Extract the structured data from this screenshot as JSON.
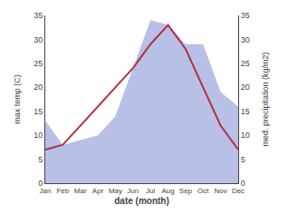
{
  "chart_data": {
    "type": "line",
    "categories": [
      "Jan",
      "Feb",
      "Mar",
      "Apr",
      "May",
      "Jun",
      "Jul",
      "Aug",
      "Sep",
      "Oct",
      "Nov",
      "Dec"
    ],
    "series": [
      {
        "type": "area",
        "color": "#b8c0e8",
        "axis": "y2",
        "values": [
          13,
          8,
          9,
          10,
          14,
          24,
          34,
          33,
          29,
          29,
          19,
          16
        ]
      },
      {
        "type": "line",
        "color": "#b03040",
        "values": [
          7,
          8,
          12,
          16,
          20,
          24,
          29,
          33,
          28,
          20,
          12,
          7
        ]
      }
    ],
    "xlabel": "date (month)",
    "ylabel": "max temp (C)",
    "y2label": "med. precipitation (kg/m2)",
    "ylim": [
      0,
      35
    ],
    "yticks": [
      0,
      5,
      10,
      15,
      20,
      25,
      30,
      35
    ],
    "y2lim": [
      0,
      35
    ],
    "y2ticks": [
      0,
      5,
      10,
      15,
      20,
      25,
      30,
      35
    ],
    "grid": false
  }
}
